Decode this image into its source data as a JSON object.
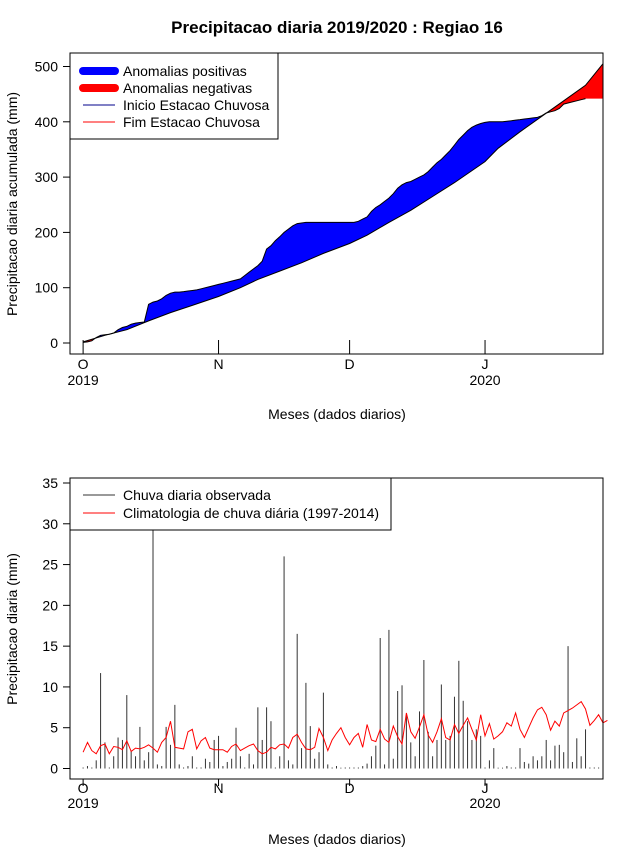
{
  "chart_data": [
    {
      "type": "area",
      "title": "Precipitacao diaria 2019/2020 : Regiao 16",
      "xlabel": "Meses (dados diarios)",
      "ylabel": "Precipitacao diaria acumulada (mm)",
      "ylim": [
        0,
        500
      ],
      "y_ticks": [
        "0",
        "100",
        "200",
        "300",
        "400",
        "500"
      ],
      "x_ticks": [
        {
          "label": "O",
          "year": "2019",
          "day": 0
        },
        {
          "label": "N",
          "year": "",
          "day": 31
        },
        {
          "label": "D",
          "year": "",
          "day": 61
        },
        {
          "label": "J",
          "year": "2020",
          "day": 92
        }
      ],
      "xlim_days": [
        -3,
        119
      ],
      "legend_position": "top-left",
      "legend": [
        {
          "label": "Anomalias positivas",
          "color": "#0000ff",
          "kind": "thick"
        },
        {
          "label": "Anomalias negativas",
          "color": "#ff0000",
          "kind": "thick"
        },
        {
          "label": "Inicio Estacao Chuvosa",
          "color": "#00008b",
          "kind": "thin"
        },
        {
          "label": "Fim Estacao Chuvosa",
          "color": "#ff0000",
          "kind": "thin"
        }
      ],
      "positive_color": "#0000ff",
      "negative_color": "#ff0000",
      "series": [
        {
          "role": "observed",
          "points": [
            [
              0,
              1
            ],
            [
              1,
              2
            ],
            [
              2,
              4
            ],
            [
              3,
              10
            ],
            [
              4,
              14
            ],
            [
              5,
              15
            ],
            [
              6,
              16
            ],
            [
              7,
              18
            ],
            [
              8,
              24
            ],
            [
              9,
              28
            ],
            [
              10,
              30
            ],
            [
              11,
              34
            ],
            [
              12,
              36
            ],
            [
              13,
              37
            ],
            [
              14,
              38
            ],
            [
              15,
              70
            ],
            [
              16,
              74
            ],
            [
              17,
              76
            ],
            [
              18,
              80
            ],
            [
              19,
              86
            ],
            [
              20,
              90
            ],
            [
              21,
              92
            ],
            [
              22,
              92
            ],
            [
              23,
              93
            ],
            [
              24,
              94
            ],
            [
              25,
              95
            ],
            [
              26,
              96
            ],
            [
              27,
              98
            ],
            [
              28,
              100
            ],
            [
              29,
              102
            ],
            [
              30,
              104
            ],
            [
              31,
              106
            ],
            [
              32,
              108
            ],
            [
              33,
              110
            ],
            [
              34,
              112
            ],
            [
              35,
              114
            ],
            [
              36,
              116
            ],
            [
              37,
              122
            ],
            [
              38,
              128
            ],
            [
              39,
              134
            ],
            [
              40,
              140
            ],
            [
              41,
              148
            ],
            [
              42,
              170
            ],
            [
              43,
              176
            ],
            [
              44,
              185
            ],
            [
              45,
              192
            ],
            [
              46,
              200
            ],
            [
              47,
              206
            ],
            [
              48,
              212
            ],
            [
              49,
              216
            ],
            [
              50,
              217
            ],
            [
              51,
              218
            ],
            [
              52,
              218
            ],
            [
              53,
              218
            ],
            [
              54,
              218
            ],
            [
              55,
              218
            ],
            [
              56,
              218
            ],
            [
              57,
              218
            ],
            [
              58,
              218
            ],
            [
              59,
              218
            ],
            [
              60,
              218
            ],
            [
              61,
              218
            ],
            [
              62,
              218
            ],
            [
              63,
              220
            ],
            [
              64,
              224
            ],
            [
              65,
              228
            ],
            [
              66,
              238
            ],
            [
              67,
              245
            ],
            [
              68,
              250
            ],
            [
              69,
              256
            ],
            [
              70,
              262
            ],
            [
              71,
              270
            ],
            [
              72,
              280
            ],
            [
              73,
              286
            ],
            [
              74,
              290
            ],
            [
              75,
              292
            ],
            [
              76,
              296
            ],
            [
              77,
              300
            ],
            [
              78,
              304
            ],
            [
              79,
              310
            ],
            [
              80,
              318
            ],
            [
              81,
              326
            ],
            [
              82,
              332
            ],
            [
              83,
              340
            ],
            [
              84,
              348
            ],
            [
              85,
              358
            ],
            [
              86,
              368
            ],
            [
              87,
              376
            ],
            [
              88,
              384
            ],
            [
              89,
              390
            ],
            [
              90,
              394
            ],
            [
              91,
              397
            ],
            [
              92,
              399
            ],
            [
              93,
              400
            ],
            [
              94,
              400
            ],
            [
              95,
              400
            ],
            [
              96,
              400
            ],
            [
              97,
              401
            ],
            [
              98,
              402
            ],
            [
              99,
              403
            ],
            [
              100,
              404
            ],
            [
              101,
              405
            ],
            [
              102,
              406
            ],
            [
              103,
              407
            ],
            [
              104,
              408
            ],
            [
              105,
              411
            ],
            [
              106,
              416
            ],
            [
              107,
              418
            ],
            [
              108,
              420
            ],
            [
              109,
              424
            ],
            [
              110,
              432
            ],
            [
              111,
              434
            ],
            [
              112,
              436
            ],
            [
              113,
              438
            ],
            [
              114,
              440
            ],
            [
              115,
              442
            ]
          ]
        },
        {
          "role": "climatology",
          "points": [
            [
              0,
              2
            ],
            [
              5,
              14
            ],
            [
              10,
              24
            ],
            [
              15,
              40
            ],
            [
              20,
              55
            ],
            [
              25,
              68
            ],
            [
              31,
              84
            ],
            [
              36,
              100
            ],
            [
              40,
              115
            ],
            [
              45,
              130
            ],
            [
              50,
              145
            ],
            [
              55,
              162
            ],
            [
              61,
              180
            ],
            [
              65,
              195
            ],
            [
              70,
              218
            ],
            [
              75,
              240
            ],
            [
              80,
              265
            ],
            [
              85,
              290
            ],
            [
              92,
              328
            ],
            [
              95,
              352
            ],
            [
              100,
              382
            ],
            [
              105,
              410
            ],
            [
              110,
              438
            ],
            [
              115,
              466
            ],
            [
              119,
              505
            ]
          ]
        }
      ]
    },
    {
      "type": "bar",
      "title": "",
      "xlabel": "Meses (dados diarios)",
      "ylabel": "Precipitacao diaria (mm)",
      "ylim": [
        0,
        35
      ],
      "y_ticks": [
        "0",
        "5",
        "10",
        "15",
        "20",
        "25",
        "30",
        "35"
      ],
      "x_ticks": [
        {
          "label": "O",
          "year": "2019",
          "day": 0
        },
        {
          "label": "N",
          "year": "",
          "day": 31
        },
        {
          "label": "D",
          "year": "",
          "day": 61
        },
        {
          "label": "J",
          "year": "2020",
          "day": 92
        }
      ],
      "xlim_days": [
        -3,
        119
      ],
      "legend_position": "top-left",
      "legend": [
        {
          "label": "Chuva diaria observada",
          "color": "#333333",
          "kind": "thin"
        },
        {
          "label": "Climatologia de chuva diária (1997-2014)",
          "color": "#ff0000",
          "kind": "thin"
        }
      ],
      "bar_color": "#333333",
      "line_color": "#ff0000",
      "bars": [
        0,
        0.3,
        0,
        1,
        11.7,
        3.2,
        0,
        1.5,
        3.8,
        3.5,
        9,
        2.2,
        1.5,
        5.1,
        1,
        2,
        35,
        0.5,
        0.3,
        5.1,
        2.9,
        7.8,
        0.5,
        0,
        0.3,
        1.5,
        0,
        0,
        1.2,
        0.8,
        3.5,
        4,
        0.3,
        0.8,
        1.2,
        5,
        1.5,
        0,
        1.8,
        0.5,
        7.5,
        3.5,
        7.5,
        5.8,
        0,
        1.5,
        26,
        1,
        0.5,
        16.5,
        2.5,
        10.5,
        5.2,
        1.2,
        2,
        9.3,
        0.5,
        0,
        0.3,
        0.1,
        0,
        0,
        0,
        0,
        0.3,
        0.6,
        1.5,
        2.8,
        16,
        0.5,
        17,
        1.2,
        9.5,
        10.2,
        6.5,
        3.2,
        1.5,
        7,
        13.3,
        4.5,
        1.5,
        3.5,
        10.3,
        3.5,
        4,
        8.8,
        13.2,
        8.3,
        5.8,
        3.5,
        4.8,
        4,
        0,
        1,
        2.5,
        0.1,
        0.1,
        0.3,
        0,
        0,
        2.5,
        0.8,
        0.6,
        1.5,
        1,
        1.5,
        3.5,
        1,
        2.8,
        2.9,
        2,
        15,
        0.8,
        3.7,
        1.5,
        4.8,
        0,
        0,
        0
      ],
      "climatology": [
        2,
        3.2,
        2.2,
        1.8,
        2.8,
        3,
        1.8,
        2.7,
        2.6,
        2.3,
        3.4,
        2.1,
        2.5,
        2.4,
        2.6,
        2.9,
        2.5,
        2,
        3.2,
        3.8,
        5.8,
        2.6,
        2.5,
        2.4,
        4.5,
        4.8,
        2.4,
        3.4,
        3.8,
        2.5,
        2.3,
        2.3,
        2.3,
        2,
        2.7,
        3,
        2.2,
        2.5,
        2.8,
        3,
        2.2,
        1.8,
        2,
        2.6,
        2.4,
        2.9,
        3,
        2.5,
        3.8,
        4.2,
        3.2,
        2.4,
        2.3,
        2.6,
        4.9,
        3.8,
        2.2,
        3.5,
        4.3,
        5,
        3.8,
        2.9,
        3.8,
        4.3,
        2.6,
        5.4,
        3.5,
        3.3,
        4.8,
        3.6,
        3.2,
        5.2,
        3.9,
        3,
        6.8,
        4.5,
        3.7,
        5.1,
        6.6,
        4.1,
        3.2,
        4.5,
        6.1,
        3.8,
        3.5,
        5.4,
        4.3,
        5.3,
        6.2,
        4.8,
        3.5,
        6.6,
        4,
        5.5,
        3.6,
        4,
        4.5,
        5.6,
        5.2,
        6.8,
        4.8,
        3.8,
        5,
        6.2,
        7.2,
        7.5,
        6.6,
        4.7,
        5.8,
        5.2,
        6.8,
        7.1,
        7.4,
        7.8,
        8.2,
        7.3,
        5.3,
        5.9,
        6.6,
        5.6,
        5.9
      ]
    }
  ]
}
